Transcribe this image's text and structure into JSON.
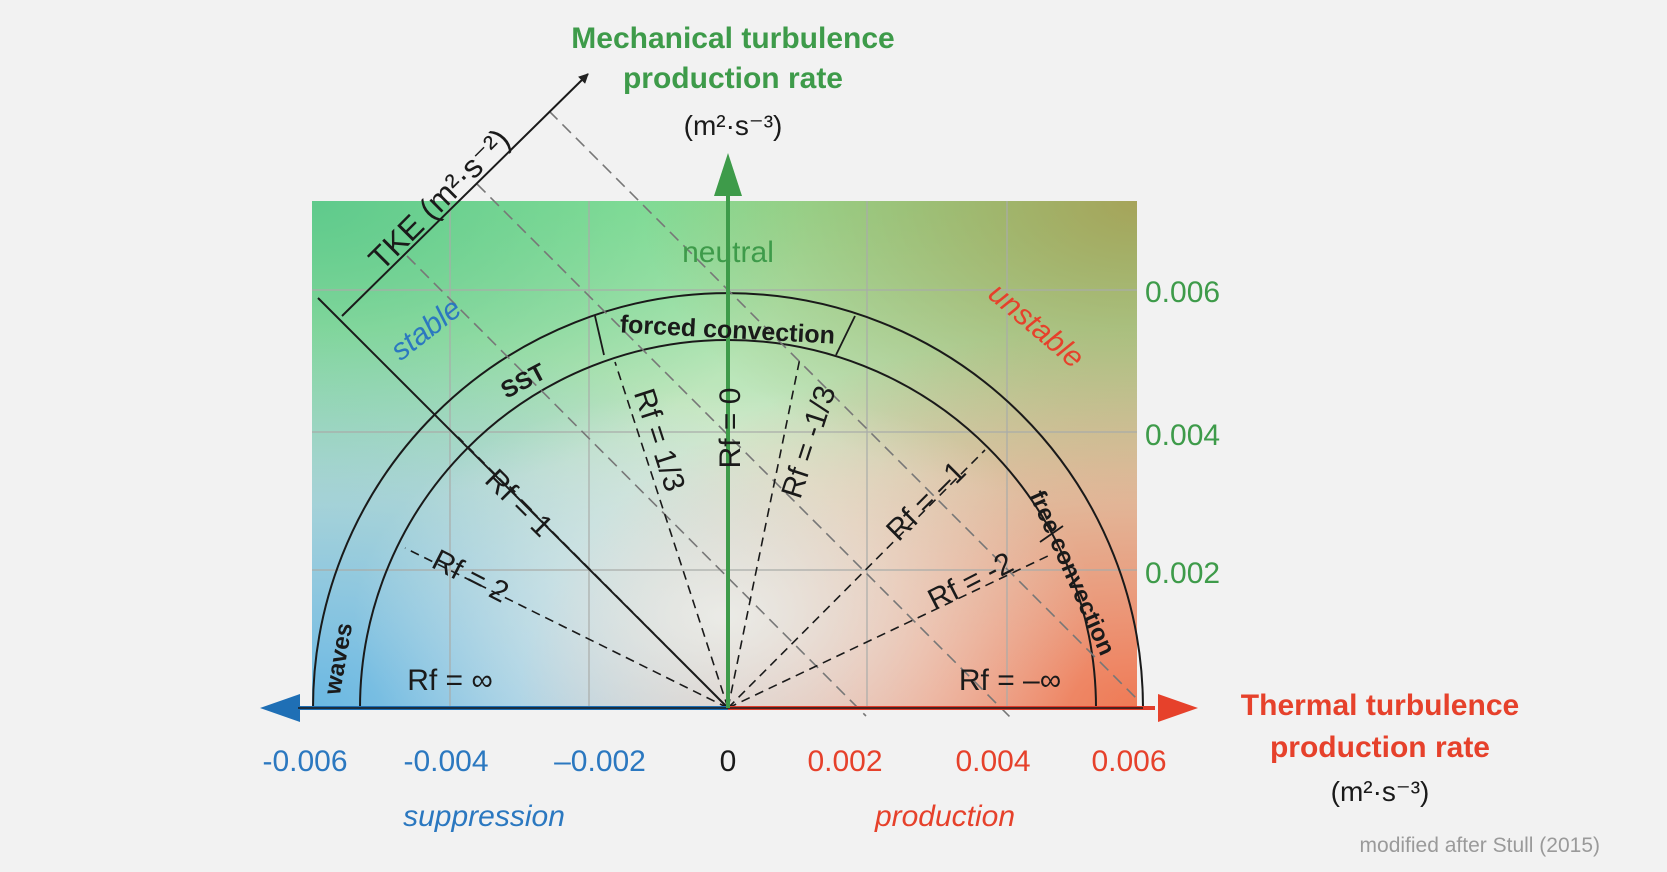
{
  "colors": {
    "page_bg": "#f2f2f2",
    "green": "#3e9b4a",
    "red": "#e6412b",
    "blue": "#2b78c0",
    "grey_text": "#9a9a9a"
  },
  "y_axis": {
    "title_line1": "Mechanical turbulence",
    "title_line2": "production rate",
    "unit": "(m²·s⁻³)",
    "ticks": [
      "0.006",
      "0.004",
      "0.002"
    ]
  },
  "x_axis": {
    "title_line1": "Thermal turbulence",
    "title_line2": "production rate",
    "unit": "(m²·s⁻³)",
    "ticks_negative": [
      "-0.006",
      "-0.004",
      "–0.002"
    ],
    "tick_zero": "0",
    "ticks_positive": [
      "0.002",
      "0.004",
      "0.006"
    ],
    "left_caption": "suppression",
    "right_caption": "production"
  },
  "tke_axis": {
    "label": "TKE (m²·s⁻²)"
  },
  "regions": {
    "neutral": "neutral",
    "stable": "stable",
    "unstable": "unstable",
    "forced_convection": "forced convection",
    "sst": "SST",
    "free_convection": "free convection",
    "waves": "waves"
  },
  "rf_labels": {
    "inf": "Rf = ∞",
    "two": "Rf = 2",
    "one": "Rf = 1",
    "third": "Rf = 1/3",
    "zero": "Rf = 0",
    "neg_third": "Rf = -1/3",
    "neg_one": "Rf = –1",
    "neg_two": "Rf = -2",
    "neg_inf": "Rf = –∞"
  },
  "credit": "modified after Stull (2015)"
}
